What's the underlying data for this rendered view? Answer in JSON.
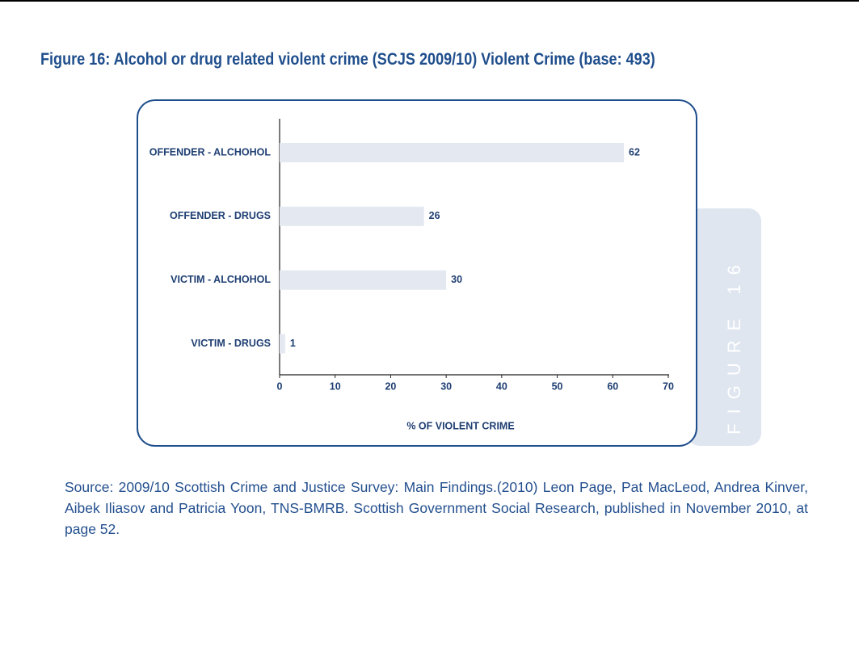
{
  "chart_data": {
    "type": "hbar",
    "title": "Figure 16: Alcohol or drug related violent crime (SCJS 2009/10) Violent Crime (base: 493)",
    "figure_label": "FIGURE 16",
    "categories": [
      "OFFENDER - ALCHOHOL",
      "OFFENDER - DRUGS",
      "VICTIM - ALCHOHOL",
      "VICTIM - DRUGS"
    ],
    "values": [
      62,
      26,
      30,
      1
    ],
    "color": "#e4e9f1",
    "xlabel": "% OF VIOLENT CRIME",
    "xlim": [
      0,
      70
    ],
    "xticks": [
      0,
      10,
      20,
      30,
      40,
      50,
      60,
      70
    ]
  },
  "source": "Source: 2009/10 Scottish Crime and Justice Survey: Main Findings.(2010) Leon Page, Pat MacLeod, Andrea Kinver, Aibek Iliasov and Patricia Yoon, TNS-BMRB. Scottish Government Social Research, published in November 2010, at page 52."
}
